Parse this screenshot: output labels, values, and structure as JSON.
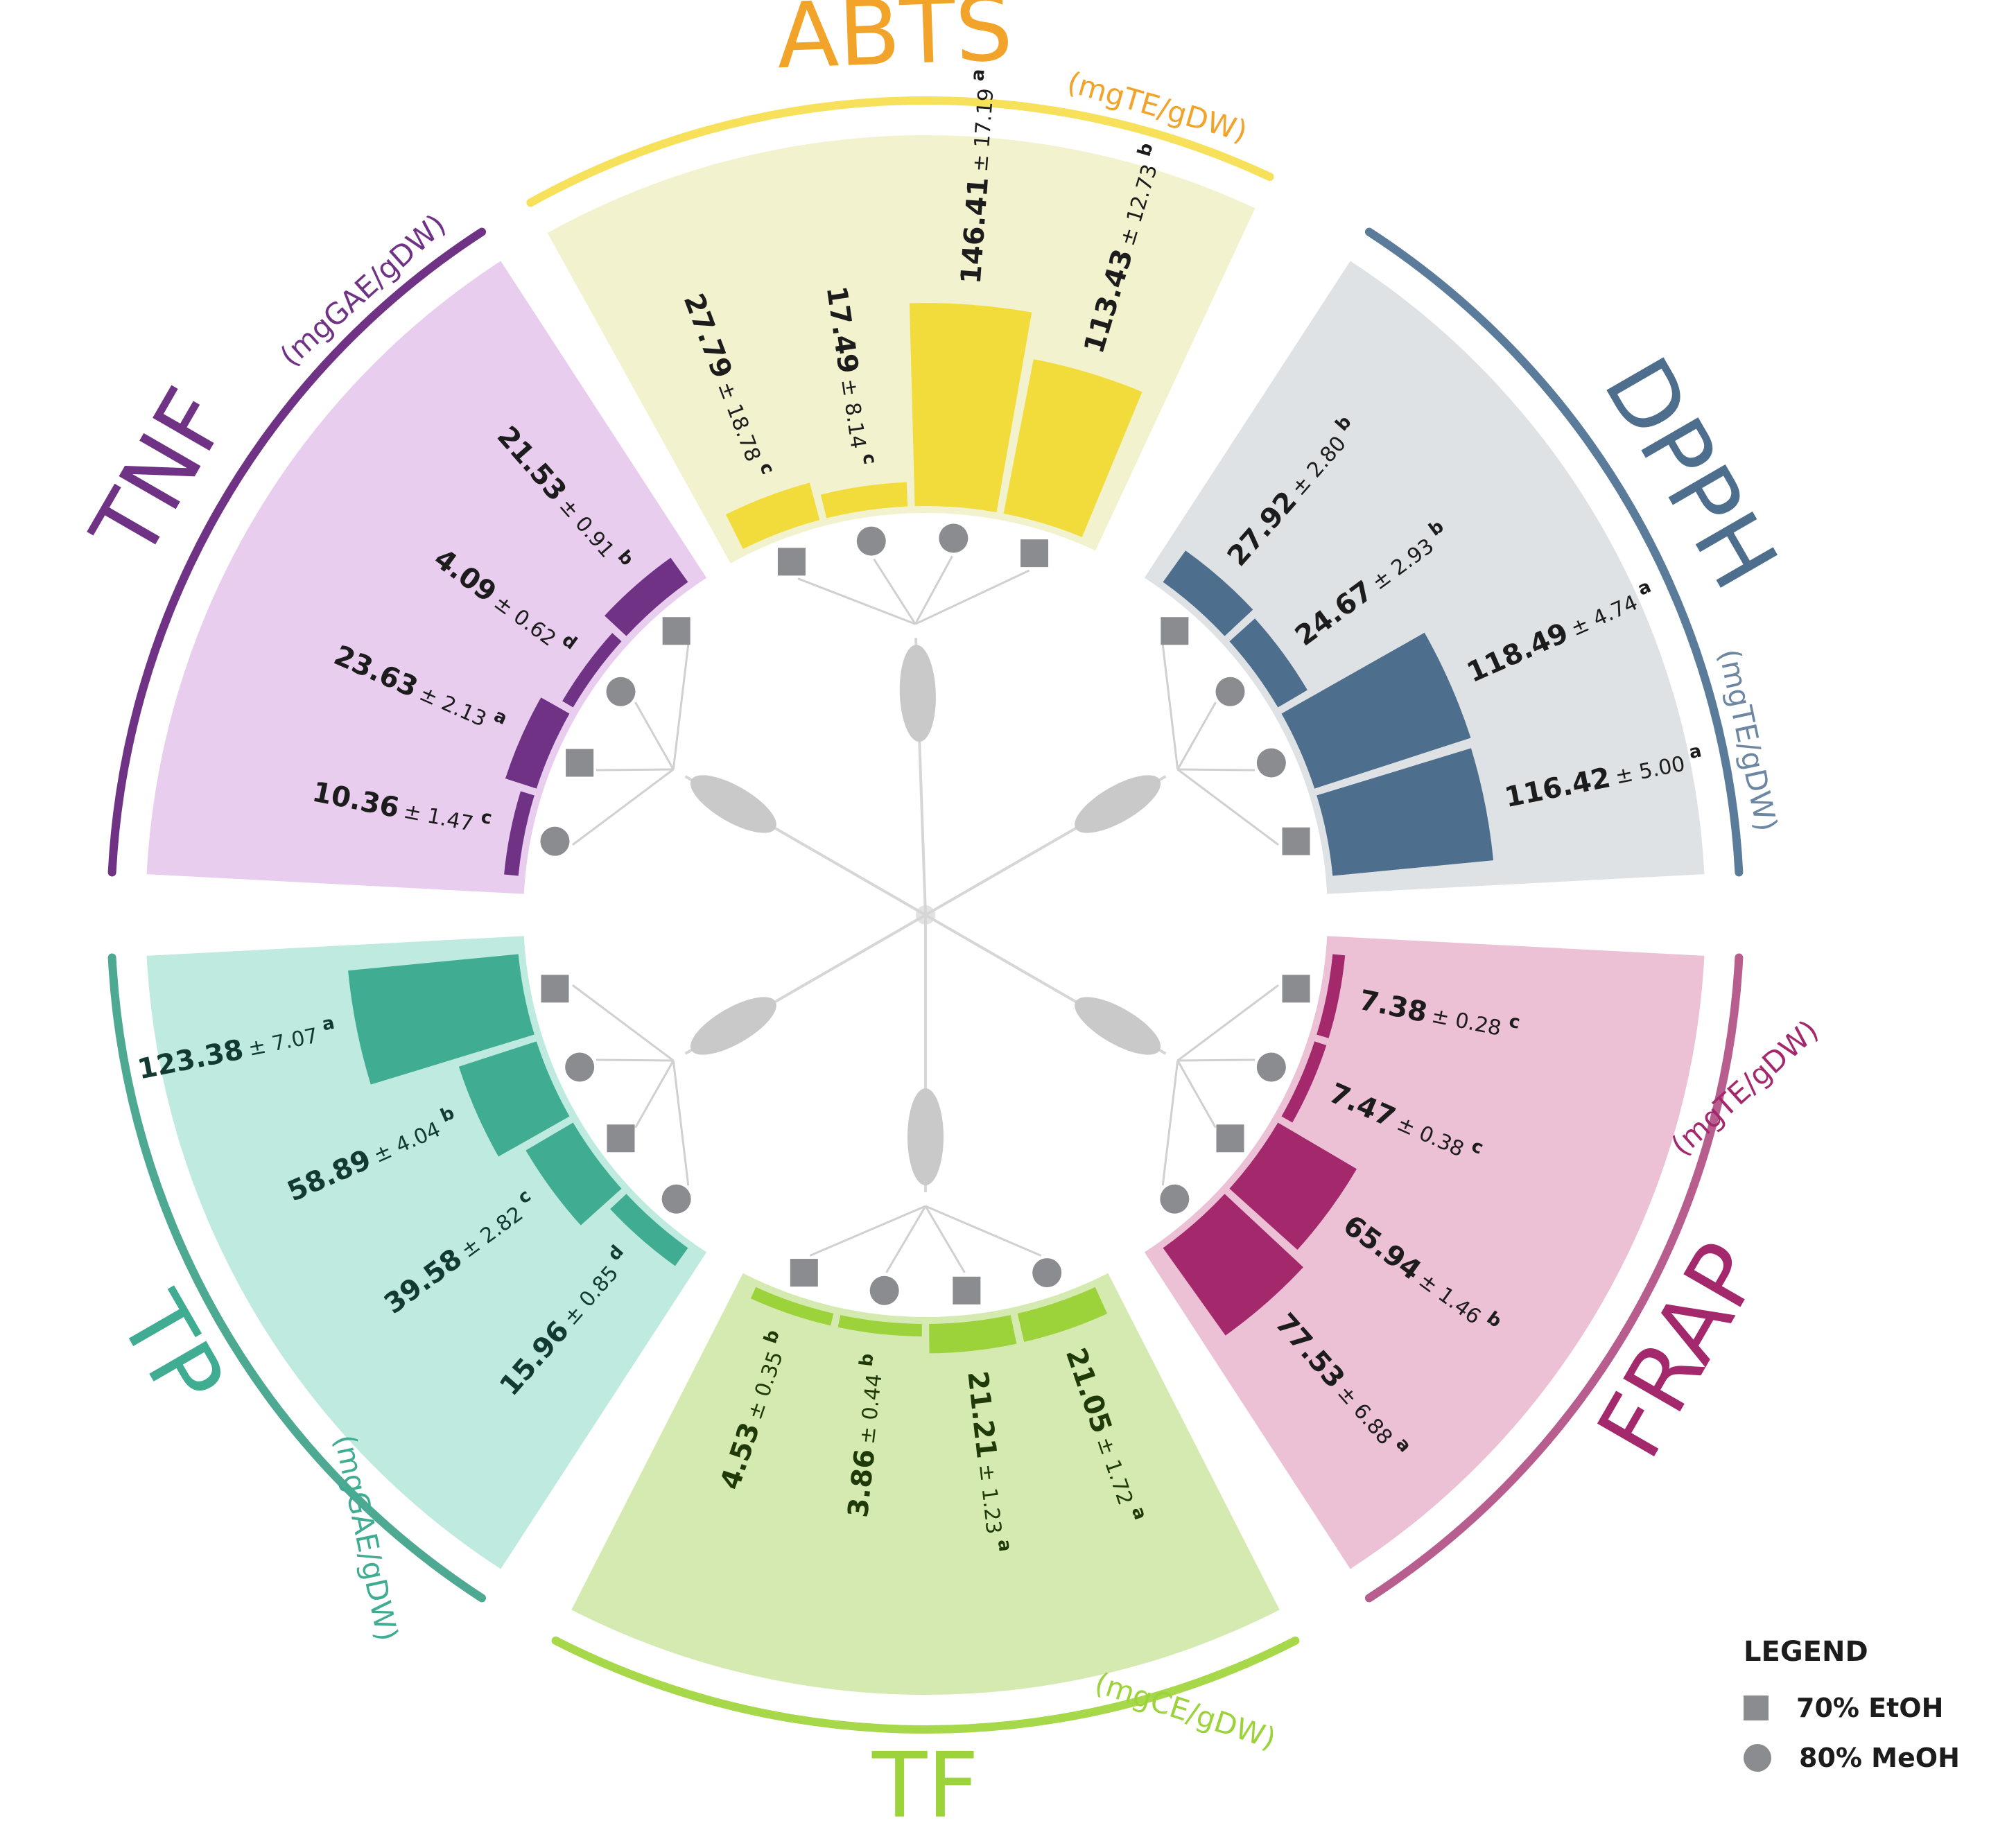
{
  "legend": {
    "title": "LEGEND",
    "items": [
      {
        "label": "70% EtOH",
        "marker": "square"
      },
      {
        "label": "80% MeOH",
        "marker": "circle"
      }
    ]
  },
  "chart_data": {
    "type": "bar",
    "layout": "radial",
    "marker_color": "#8a8c90",
    "markers": {
      "square": "70% EtOH",
      "circle": "80% MeOH"
    },
    "groups": [
      {
        "name": "ABTS",
        "unit": "(mgTE/gDW)",
        "bar_color": "#f2dc3c",
        "panel_color": "#f3f2cf",
        "arc_color": "#f7e05a",
        "title_color": "#f2a329",
        "unit_color": "#f2a329",
        "value_color": "#1c1c1c",
        "items": [
          {
            "value": 27.79,
            "sd": "18.78",
            "letter": "c",
            "marker": "square"
          },
          {
            "value": 17.49,
            "sd": "8.14",
            "letter": "c",
            "marker": "circle"
          },
          {
            "value": 146.41,
            "sd": "17.19",
            "letter": "a",
            "marker": "circle"
          },
          {
            "value": 113.43,
            "sd": "12.73",
            "letter": "b",
            "marker": "square"
          }
        ]
      },
      {
        "name": "DPPH",
        "unit": "(mgTE/gDW)",
        "bar_color": "#4e6e8e",
        "panel_color": "#dfe2e5",
        "arc_color": "#5b7b9b",
        "title_color": "#4e6e8e",
        "unit_color": "#6d87a3",
        "value_color": "#1c1c1c",
        "items": [
          {
            "value": 27.92,
            "sd": "2.80",
            "letter": "b",
            "marker": "square"
          },
          {
            "value": 24.67,
            "sd": "2.93",
            "letter": "b",
            "marker": "circle"
          },
          {
            "value": 118.49,
            "sd": "4.74",
            "letter": "a",
            "marker": "circle"
          },
          {
            "value": 116.42,
            "sd": "5.00",
            "letter": "a",
            "marker": "square"
          }
        ]
      },
      {
        "name": "FRAP",
        "unit": "(mgTE/gDW)",
        "bar_color": "#a3286c",
        "panel_color": "#ecc0d5",
        "arc_color": "#b75e8e",
        "title_color": "#a3286c",
        "unit_color": "#a3286c",
        "value_color": "#1c1c1c",
        "items": [
          {
            "value": 7.38,
            "sd": "0.28",
            "letter": "c",
            "marker": "square"
          },
          {
            "value": 7.47,
            "sd": "0.38",
            "letter": "c",
            "marker": "circle"
          },
          {
            "value": 65.94,
            "sd": "1.46",
            "letter": "b",
            "marker": "square"
          },
          {
            "value": 77.53,
            "sd": "6.88",
            "letter": "a",
            "marker": "circle"
          }
        ]
      },
      {
        "name": "TF",
        "unit": "(mgCE/gDW)",
        "bar_color": "#9cd33a",
        "panel_color": "#d5eab0",
        "arc_color": "#a6d84a",
        "title_color": "#9cd33a",
        "unit_color": "#9cd33a",
        "value_color": "#1f3a08",
        "items": [
          {
            "value": 21.05,
            "sd": "1.72",
            "letter": "a",
            "marker": "circle"
          },
          {
            "value": 21.21,
            "sd": "1.23",
            "letter": "a",
            "marker": "square"
          },
          {
            "value": 3.86,
            "sd": "0.44",
            "letter": "b",
            "marker": "circle"
          },
          {
            "value": 4.53,
            "sd": "0.35",
            "letter": "b",
            "marker": "square"
          }
        ]
      },
      {
        "name": "TP",
        "unit": "(mgGAE/gDW)",
        "bar_color": "#40ad93",
        "panel_color": "#bfeadf",
        "arc_color": "#4ea993",
        "title_color": "#40ad93",
        "unit_color": "#40ad93",
        "value_color": "#123a32",
        "items": [
          {
            "value": 15.96,
            "sd": "0.85",
            "letter": "d",
            "marker": "circle"
          },
          {
            "value": 39.58,
            "sd": "2.82",
            "letter": "c",
            "marker": "square"
          },
          {
            "value": 58.89,
            "sd": "4.04",
            "letter": "b",
            "marker": "circle"
          },
          {
            "value": 123.38,
            "sd": "7.07",
            "letter": "a",
            "marker": "square"
          }
        ]
      },
      {
        "name": "TNF",
        "unit": "(mgGAE/gDW)",
        "bar_color": "#6f3285",
        "panel_color": "#e8cdee",
        "arc_color": "#6f3285",
        "title_color": "#6f3285",
        "unit_color": "#6f3285",
        "value_color": "#1c1c1c",
        "items": [
          {
            "value": 10.36,
            "sd": "1.47",
            "letter": "c",
            "marker": "circle"
          },
          {
            "value": 23.63,
            "sd": "2.13",
            "letter": "a",
            "marker": "square"
          },
          {
            "value": 4.09,
            "sd": "0.62",
            "letter": "d",
            "marker": "circle"
          },
          {
            "value": 21.53,
            "sd": "0.91",
            "letter": "b",
            "marker": "square"
          }
        ]
      }
    ]
  }
}
